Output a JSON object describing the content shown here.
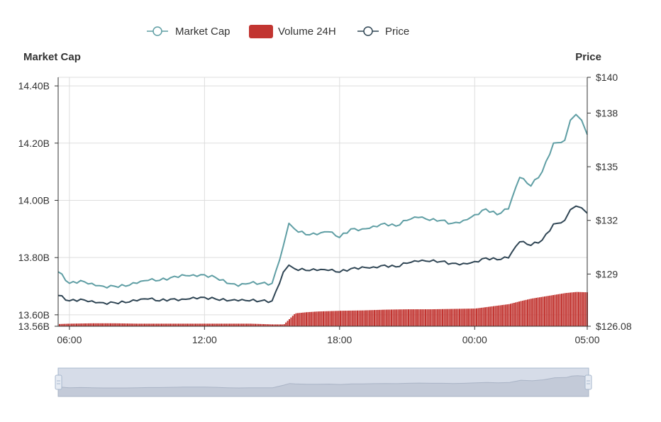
{
  "legend": {
    "market_cap": "Market Cap",
    "volume": "Volume 24H",
    "price": "Price"
  },
  "chart_data": {
    "type": "line",
    "title": "",
    "left_axis_title": "Market Cap",
    "right_axis_title": "Price",
    "left_ticks": [
      "14.40B",
      "14.20B",
      "14.00B",
      "13.80B",
      "13.60B",
      "13.56B"
    ],
    "right_ticks": [
      "$140",
      "$138",
      "$135",
      "$132",
      "$129",
      "$126.08"
    ],
    "x_ticks": [
      "06:00",
      "12:00",
      "18:00",
      "00:00",
      "05:00"
    ],
    "market_cap_range": [
      13.56,
      14.43
    ],
    "price_range": [
      126.08,
      140
    ],
    "grid": true,
    "legend_position": "top",
    "colors": {
      "market_cap": "#5f9ea4",
      "price": "#2f4554",
      "volume": "#c23531",
      "grid": "#dddddd",
      "axis": "#333333",
      "zoom_fill": "#d6dce8",
      "zoom_border": "#a7b7cc"
    },
    "series": [
      {
        "name": "Market Cap",
        "axis": "left",
        "unit": "B",
        "x": [
          "05:30",
          "06:00",
          "06:30",
          "07:00",
          "07:30",
          "08:00",
          "08:30",
          "09:00",
          "09:30",
          "10:00",
          "10:30",
          "11:00",
          "11:30",
          "12:00",
          "12:30",
          "13:00",
          "13:30",
          "14:00",
          "14:30",
          "15:00",
          "15:30",
          "15:45",
          "16:00",
          "16:30",
          "17:00",
          "17:30",
          "18:00",
          "18:30",
          "19:00",
          "19:30",
          "20:00",
          "20:30",
          "21:00",
          "21:30",
          "22:00",
          "22:30",
          "23:00",
          "23:30",
          "00:00",
          "00:30",
          "01:00",
          "01:30",
          "02:00",
          "02:30",
          "03:00",
          "03:30",
          "04:00",
          "04:15",
          "04:30",
          "04:45",
          "05:00"
        ],
        "values": [
          13.75,
          13.71,
          13.72,
          13.71,
          13.7,
          13.7,
          13.7,
          13.71,
          13.72,
          13.72,
          13.73,
          13.74,
          13.74,
          13.74,
          13.73,
          13.71,
          13.7,
          13.71,
          13.71,
          13.71,
          13.84,
          13.92,
          13.9,
          13.88,
          13.88,
          13.89,
          13.87,
          13.9,
          13.9,
          13.91,
          13.92,
          13.91,
          13.93,
          13.94,
          13.93,
          13.93,
          13.92,
          13.93,
          13.95,
          13.97,
          13.95,
          13.97,
          14.08,
          14.05,
          14.1,
          14.2,
          14.21,
          14.28,
          14.3,
          14.28,
          14.23
        ]
      },
      {
        "name": "Price",
        "axis": "right",
        "unit": "$",
        "x": [
          "05:30",
          "06:00",
          "06:30",
          "07:00",
          "07:30",
          "08:00",
          "08:30",
          "09:00",
          "09:30",
          "10:00",
          "10:30",
          "11:00",
          "11:30",
          "12:00",
          "12:30",
          "13:00",
          "13:30",
          "14:00",
          "14:30",
          "15:00",
          "15:30",
          "15:45",
          "16:00",
          "16:30",
          "17:00",
          "17:30",
          "18:00",
          "18:30",
          "19:00",
          "19:30",
          "20:00",
          "20:30",
          "21:00",
          "21:30",
          "22:00",
          "22:30",
          "23:00",
          "23:30",
          "00:00",
          "00:30",
          "01:00",
          "01:30",
          "02:00",
          "02:30",
          "03:00",
          "03:30",
          "04:00",
          "04:15",
          "04:30",
          "04:45",
          "05:00"
        ],
        "values": [
          127.8,
          127.5,
          127.6,
          127.5,
          127.4,
          127.4,
          127.4,
          127.5,
          127.6,
          127.5,
          127.6,
          127.6,
          127.7,
          127.7,
          127.6,
          127.5,
          127.5,
          127.5,
          127.5,
          127.5,
          129.1,
          129.5,
          129.3,
          129.2,
          129.2,
          129.2,
          129.1,
          129.3,
          129.4,
          129.4,
          129.5,
          129.4,
          129.6,
          129.7,
          129.7,
          129.7,
          129.6,
          129.6,
          129.7,
          129.9,
          129.8,
          129.9,
          130.8,
          130.6,
          130.9,
          131.8,
          132.0,
          132.6,
          132.8,
          132.7,
          132.4
        ]
      },
      {
        "name": "Volume 24H",
        "axis": "volume",
        "unit": "relative",
        "x": [
          "05:30",
          "06:00",
          "07:00",
          "08:00",
          "09:00",
          "10:00",
          "11:00",
          "12:00",
          "13:00",
          "14:00",
          "15:00",
          "15:30",
          "15:45",
          "16:00",
          "16:30",
          "17:00",
          "18:00",
          "19:00",
          "20:00",
          "21:00",
          "22:00",
          "23:00",
          "00:00",
          "00:30",
          "01:00",
          "01:30",
          "02:00",
          "02:30",
          "03:00",
          "03:30",
          "04:00",
          "04:30",
          "05:00"
        ],
        "values": [
          0.06,
          0.07,
          0.08,
          0.08,
          0.07,
          0.07,
          0.07,
          0.07,
          0.07,
          0.07,
          0.05,
          0.05,
          0.2,
          0.35,
          0.38,
          0.4,
          0.42,
          0.43,
          0.45,
          0.46,
          0.46,
          0.47,
          0.48,
          0.52,
          0.56,
          0.6,
          0.68,
          0.75,
          0.8,
          0.85,
          0.9,
          0.93,
          0.92
        ]
      }
    ]
  },
  "zoom": {
    "start_percent": 0,
    "end_percent": 100
  }
}
